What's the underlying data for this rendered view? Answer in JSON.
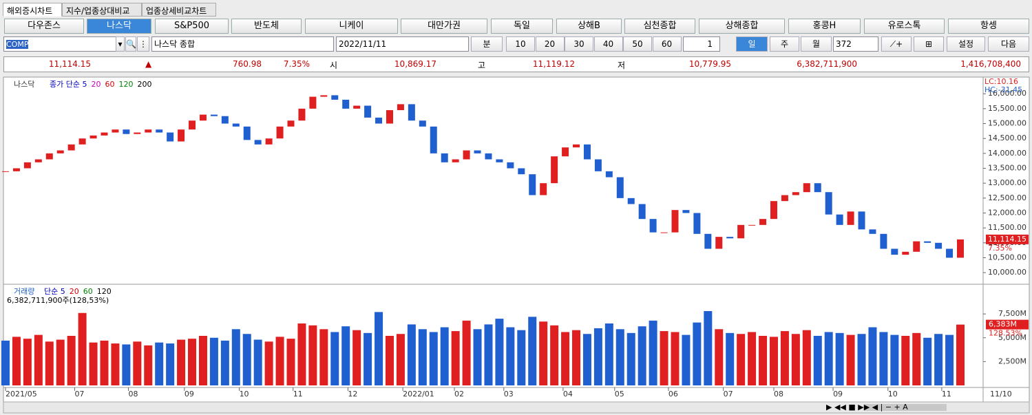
{
  "ui": {
    "tabs": [
      "해외증시차트",
      "지수/업종상대비교",
      "업종상세비교차트"
    ],
    "markets": [
      "다우존스",
      "나스닥",
      "S&P500",
      "반도체",
      "니케이",
      "대만가권",
      "독일",
      "상해B",
      "심천종합",
      "상해종합",
      "홍콩H",
      "유로스톡",
      "항셍"
    ],
    "code": "COMP",
    "name": "나스닥 종합",
    "date": "2022/11/11",
    "minute": "분",
    "periods": [
      "10",
      "20",
      "30",
      "40",
      "50",
      "60"
    ],
    "unit": "1",
    "day": "일",
    "week": "주",
    "month": "월",
    "count": "372",
    "settings": "설정",
    "next": "다음",
    "quote": [
      "11,114.15",
      "▲",
      "760.98",
      "7.35%",
      "시",
      "10,869.17",
      "고",
      "11,119.12",
      "저",
      "10,779.95",
      "6,382,711,900",
      "1,416,708,400"
    ]
  },
  "chart_data": [
    {
      "type": "candlestick",
      "name": "나스닥",
      "legend": [
        "종가 단순 5",
        "20",
        "60",
        "120",
        "200"
      ],
      "legend_colors": [
        "#0000c0",
        "#c000c0",
        "#d00000",
        "#008000",
        "#000000"
      ],
      "corner_labels": [
        "LC:10.16",
        "HC:-31.45"
      ],
      "price_tag": "11,114.15",
      "change_tag": "7.35%",
      "up_color": "#e02020",
      "down_color": "#1f5fd0",
      "closes": [
        13400,
        13500,
        13700,
        13800,
        14000,
        14100,
        14300,
        14500,
        14600,
        14700,
        14800,
        14650,
        14700,
        14800,
        14700,
        14400,
        14800,
        15100,
        15300,
        15250,
        15000,
        14900,
        14450,
        14300,
        14500,
        14900,
        15100,
        15500,
        15900,
        15950,
        15800,
        15500,
        15600,
        15200,
        15000,
        15450,
        15650,
        15100,
        14900,
        14000,
        13700,
        13800,
        14100,
        14000,
        13800,
        13700,
        13500,
        13300,
        12600,
        13000,
        13900,
        14200,
        14300,
        13800,
        13400,
        13200,
        12500,
        12300,
        11800,
        11350,
        11350,
        12100,
        12000,
        11300,
        10800,
        11200,
        11150,
        11600,
        11600,
        11800,
        12400,
        12600,
        12700,
        13000,
        12700,
        11950,
        11600,
        12050,
        11450,
        11300,
        10800,
        10600,
        10700,
        11050,
        11000,
        10800,
        10500,
        11114.15
      ],
      "xlim": [
        0,
        87
      ],
      "ylim": [
        9680,
        16490
      ],
      "yticks": [
        {
          "value": 10000,
          "label": "10,000.00"
        },
        {
          "value": 10500,
          "label": "10,500.00"
        },
        {
          "value": 11000,
          "label": "11,000.00"
        },
        {
          "value": 11500,
          "label": "11,500.00"
        },
        {
          "value": 12000,
          "label": "12,000.00"
        },
        {
          "value": 12500,
          "label": "12,500.00"
        },
        {
          "value": 13000,
          "label": "13,000.00"
        },
        {
          "value": 13500,
          "label": "13,500.00"
        },
        {
          "value": 14000,
          "label": "14,000.00"
        },
        {
          "value": 14500,
          "label": "14,500.00"
        },
        {
          "value": 15000,
          "label": "15,000.00"
        },
        {
          "value": 15500,
          "label": "15,500.00"
        },
        {
          "value": 16000,
          "label": "16,000.00"
        }
      ],
      "grid": false
    },
    {
      "type": "bar",
      "name": "거래량",
      "legend": [
        "단순 5",
        "20",
        "60",
        "120"
      ],
      "legend_colors": [
        "#0000c0",
        "#d00000",
        "#008000",
        "#000000"
      ],
      "summary": "6,382,711,900주(128,53%)",
      "volume_tag": "6,383M",
      "ratio_tag": "128.53%",
      "values": [
        4700,
        5100,
        4900,
        5300,
        4600,
        4800,
        5200,
        7600,
        4500,
        4700,
        4400,
        4300,
        4600,
        4200,
        4500,
        4400,
        4800,
        4900,
        5200,
        5000,
        4700,
        5900,
        5400,
        4800,
        4600,
        5100,
        4900,
        6500,
        6300,
        5900,
        5600,
        6200,
        5800,
        5500,
        7700,
        5200,
        5400,
        6400,
        5900,
        5600,
        6100,
        5700,
        6800,
        5900,
        6400,
        7000,
        6100,
        5800,
        7200,
        6700,
        6300,
        5600,
        5800,
        5400,
        6000,
        6500,
        5900,
        5500,
        6200,
        6800,
        5700,
        5600,
        5300,
        6600,
        7800,
        5900,
        5500,
        5400,
        5600,
        5200,
        5100,
        5700,
        5400,
        5800,
        5200,
        5600,
        5500,
        5300,
        5400,
        6100,
        5600,
        5300,
        5200,
        5500,
        5000,
        5400,
        5300,
        6383
      ],
      "xlim": [
        0,
        87
      ],
      "ylim": [
        0,
        10400
      ],
      "yticks": [
        {
          "value": 2500,
          "label": "2,500M"
        },
        {
          "value": 5000,
          "label": "5,000M"
        },
        {
          "value": 7500,
          "label": "7,500M"
        }
      ],
      "xticks": [
        {
          "value": 0,
          "label": "2021/05"
        },
        {
          "value": 6.3,
          "label": "07"
        },
        {
          "value": 11.2,
          "label": "08"
        },
        {
          "value": 16.3,
          "label": "09"
        },
        {
          "value": 21.3,
          "label": "10"
        },
        {
          "value": 26.2,
          "label": "11"
        },
        {
          "value": 31.2,
          "label": "12"
        },
        {
          "value": 36.2,
          "label": "2022/01"
        },
        {
          "value": 40.9,
          "label": "02"
        },
        {
          "value": 45.4,
          "label": "03"
        },
        {
          "value": 50.8,
          "label": "04"
        },
        {
          "value": 55.5,
          "label": "05"
        },
        {
          "value": 60.4,
          "label": "06"
        },
        {
          "value": 65.4,
          "label": "07"
        },
        {
          "value": 70.0,
          "label": "08"
        },
        {
          "value": 75.4,
          "label": "09"
        },
        {
          "value": 80.4,
          "label": "10"
        },
        {
          "value": 85.3,
          "label": "11"
        }
      ],
      "x_end_label": "11/10",
      "grid": false
    }
  ]
}
